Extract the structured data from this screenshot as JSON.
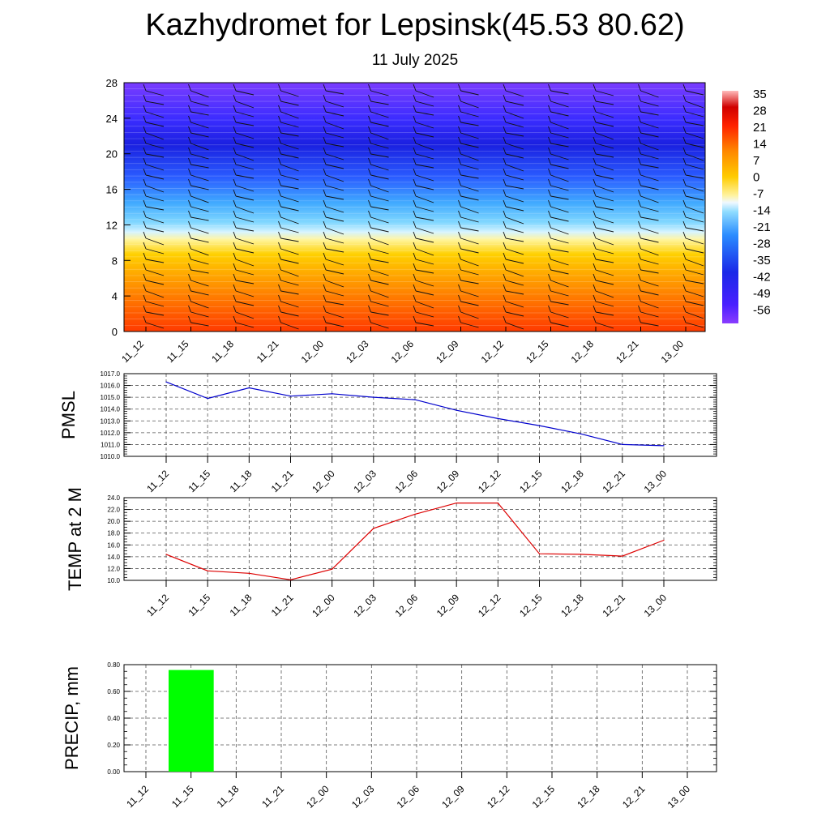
{
  "title": "Kazhydromet for Lepsinsk(45.53 80.62)",
  "subtitle": "11 July 2025",
  "colors": {
    "pmsl_line": "#0000cc",
    "temp_line": "#dd0000",
    "precip_bar": "#00ff00"
  },
  "chart_data": [
    {
      "type": "heatmap",
      "name_note": "vertical temperature cross-section with wind barbs",
      "categories": [
        "11_12",
        "11_15",
        "11_18",
        "11_21",
        "12_00",
        "12_03",
        "12_06",
        "12_09",
        "12_12",
        "12_15",
        "12_18",
        "12_21",
        "13_00"
      ],
      "y_ticks": [
        "0",
        "4",
        "8",
        "12",
        "16",
        "20",
        "24",
        "28"
      ],
      "ylim": [
        0,
        28
      ],
      "colorbar_labels": [
        "35",
        "28",
        "21",
        "14",
        "7",
        "0",
        "-7",
        "-14",
        "-21",
        "-28",
        "-35",
        "-42",
        "-49",
        "-56"
      ],
      "colorbar_range": [
        -60,
        38
      ],
      "colormap": "purple-blue-cyan-white-yellow-orange-red"
    },
    {
      "type": "line",
      "ylabel": "PMSL",
      "categories": [
        "11_12",
        "11_15",
        "11_18",
        "11_21",
        "12_00",
        "12_03",
        "12_06",
        "12_09",
        "12_12",
        "12_15",
        "12_18",
        "12_21",
        "13_00"
      ],
      "values": [
        1016.3,
        1014.9,
        1015.8,
        1015.1,
        1015.3,
        1015.0,
        1014.8,
        1013.9,
        1013.2,
        1012.6,
        1011.9,
        1011.0,
        1010.9
      ],
      "y_ticks": [
        "1010.0",
        "1011.0",
        "1012.0",
        "1013.0",
        "1014.0",
        "1015.0",
        "1016.0",
        "1017.0"
      ],
      "ylim": [
        1010,
        1017
      ],
      "grid": true
    },
    {
      "type": "line",
      "ylabel": "TEMP at 2 M",
      "categories": [
        "11_12",
        "11_15",
        "11_18",
        "11_21",
        "12_00",
        "12_03",
        "12_06",
        "12_09",
        "12_12",
        "12_15",
        "12_18",
        "12_21",
        "13_00"
      ],
      "values": [
        14.4,
        11.6,
        11.2,
        10.1,
        11.9,
        18.8,
        21.2,
        23.1,
        23.1,
        14.5,
        14.4,
        14.1,
        16.8
      ],
      "y_ticks": [
        "10.0",
        "12.0",
        "14.0",
        "16.0",
        "18.0",
        "20.0",
        "22.0",
        "24.0"
      ],
      "ylim": [
        10,
        24
      ],
      "grid": true
    },
    {
      "type": "bar",
      "ylabel": "PRECIP, mm",
      "categories": [
        "11_12",
        "11_15",
        "11_18",
        "11_21",
        "12_00",
        "12_03",
        "12_06",
        "12_09",
        "12_12",
        "12_15",
        "12_18",
        "12_21",
        "13_00"
      ],
      "values": [
        0,
        0.76,
        0,
        0,
        0,
        0,
        0,
        0,
        0,
        0,
        0,
        0,
        0
      ],
      "y_ticks": [
        "0.00",
        "0.20",
        "0.40",
        "0.60",
        "0.80"
      ],
      "ylim": [
        0,
        0.8
      ],
      "grid": true
    }
  ]
}
